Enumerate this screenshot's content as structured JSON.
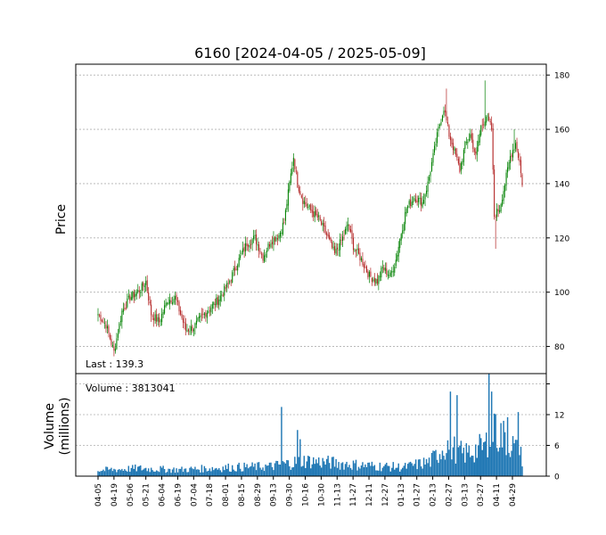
{
  "chart_data": {
    "type": "candlestick",
    "title": "6160   [2024-04-05 / 2025-05-09]",
    "price_panel": {
      "ylabel": "Price",
      "ylim": [
        70,
        184
      ],
      "yticks": [
        80,
        100,
        120,
        140,
        160,
        180
      ],
      "annotation": "Last : 139.3",
      "grid": true
    },
    "volume_panel": {
      "ylabel_lines": [
        "Volume",
        "(millions)"
      ],
      "ylim": [
        0,
        20
      ],
      "yticks": [
        0,
        6,
        12,
        18
      ],
      "ytick_labels": [
        "0",
        "6",
        "12",
        ""
      ],
      "annotation": "Volume : 3813041",
      "grid": true
    },
    "x_tick_labels": [
      "04-05",
      "04-19",
      "05-06",
      "05-21",
      "06-04",
      "06-19",
      "07-04",
      "07-18",
      "08-01",
      "08-15",
      "08-29",
      "09-13",
      "09-30",
      "10-16",
      "10-30",
      "11-13",
      "11-27",
      "12-11",
      "12-27",
      "01-13",
      "01-27",
      "02-13",
      "02-27",
      "03-13",
      "03-27",
      "04-11",
      "04-29"
    ],
    "colors": {
      "up": "#008000",
      "down": "#b22222",
      "volume": "#1f77b4",
      "grid": "#b0b0b0"
    },
    "price_keypoints": [
      {
        "i": 0,
        "close": 92
      },
      {
        "i": 6,
        "close": 88
      },
      {
        "i": 12,
        "close": 78
      },
      {
        "i": 18,
        "close": 93
      },
      {
        "i": 24,
        "close": 98
      },
      {
        "i": 32,
        "close": 101
      },
      {
        "i": 36,
        "close": 104
      },
      {
        "i": 40,
        "close": 92
      },
      {
        "i": 46,
        "close": 89
      },
      {
        "i": 52,
        "close": 97
      },
      {
        "i": 58,
        "close": 98
      },
      {
        "i": 62,
        "close": 92
      },
      {
        "i": 66,
        "close": 86
      },
      {
        "i": 72,
        "close": 87
      },
      {
        "i": 78,
        "close": 91
      },
      {
        "i": 84,
        "close": 94
      },
      {
        "i": 90,
        "close": 97
      },
      {
        "i": 98,
        "close": 103
      },
      {
        "i": 105,
        "close": 111
      },
      {
        "i": 112,
        "close": 118
      },
      {
        "i": 118,
        "close": 120
      },
      {
        "i": 124,
        "close": 113
      },
      {
        "i": 130,
        "close": 119
      },
      {
        "i": 136,
        "close": 121
      },
      {
        "i": 140,
        "close": 126
      },
      {
        "i": 144,
        "close": 140
      },
      {
        "i": 147,
        "close": 150
      },
      {
        "i": 150,
        "close": 140
      },
      {
        "i": 154,
        "close": 134
      },
      {
        "i": 160,
        "close": 130
      },
      {
        "i": 166,
        "close": 127
      },
      {
        "i": 172,
        "close": 121
      },
      {
        "i": 178,
        "close": 114
      },
      {
        "i": 184,
        "close": 120
      },
      {
        "i": 188,
        "close": 125
      },
      {
        "i": 192,
        "close": 117
      },
      {
        "i": 198,
        "close": 112
      },
      {
        "i": 204,
        "close": 106
      },
      {
        "i": 210,
        "close": 104
      },
      {
        "i": 214,
        "close": 109
      },
      {
        "i": 220,
        "close": 106
      },
      {
        "i": 224,
        "close": 112
      },
      {
        "i": 228,
        "close": 122
      },
      {
        "i": 232,
        "close": 131
      },
      {
        "i": 238,
        "close": 135
      },
      {
        "i": 244,
        "close": 133
      },
      {
        "i": 248,
        "close": 140
      },
      {
        "i": 252,
        "close": 150
      },
      {
        "i": 256,
        "close": 160
      },
      {
        "i": 260,
        "close": 168
      },
      {
        "i": 264,
        "close": 158
      },
      {
        "i": 268,
        "close": 152
      },
      {
        "i": 272,
        "close": 145
      },
      {
        "i": 276,
        "close": 154
      },
      {
        "i": 280,
        "close": 158
      },
      {
        "i": 284,
        "close": 150
      },
      {
        "i": 288,
        "close": 161
      },
      {
        "i": 292,
        "close": 165
      },
      {
        "i": 296,
        "close": 160
      },
      {
        "i": 298,
        "close": 128
      },
      {
        "i": 302,
        "close": 131
      },
      {
        "i": 306,
        "close": 140
      },
      {
        "i": 310,
        "close": 150
      },
      {
        "i": 314,
        "close": 155
      },
      {
        "i": 317,
        "close": 148
      },
      {
        "i": 319,
        "close": 139.3
      }
    ],
    "volume_keypoints": [
      {
        "i": 0,
        "v": 1.2
      },
      {
        "i": 30,
        "v": 1.6
      },
      {
        "i": 60,
        "v": 1.3
      },
      {
        "i": 100,
        "v": 1.8
      },
      {
        "i": 130,
        "v": 2.0
      },
      {
        "i": 155,
        "v": 3.2
      },
      {
        "i": 200,
        "v": 2.2
      },
      {
        "i": 230,
        "v": 1.8
      },
      {
        "i": 250,
        "v": 3.0
      },
      {
        "i": 262,
        "v": 6.5
      },
      {
        "i": 275,
        "v": 4.5
      },
      {
        "i": 290,
        "v": 6.0
      },
      {
        "i": 300,
        "v": 9.0
      },
      {
        "i": 310,
        "v": 7.0
      },
      {
        "i": 319,
        "v": 3.8
      }
    ],
    "volume_spikes": [
      {
        "i": 138,
        "v": 13.5
      },
      {
        "i": 150,
        "v": 9.0
      },
      {
        "i": 152,
        "v": 7.2
      },
      {
        "i": 265,
        "v": 16.5
      },
      {
        "i": 270,
        "v": 15.8
      },
      {
        "i": 294,
        "v": 21.5
      },
      {
        "i": 296,
        "v": 16.5
      },
      {
        "i": 298,
        "v": 12.2
      },
      {
        "i": 308,
        "v": 11.5
      },
      {
        "i": 316,
        "v": 12.5
      }
    ]
  }
}
